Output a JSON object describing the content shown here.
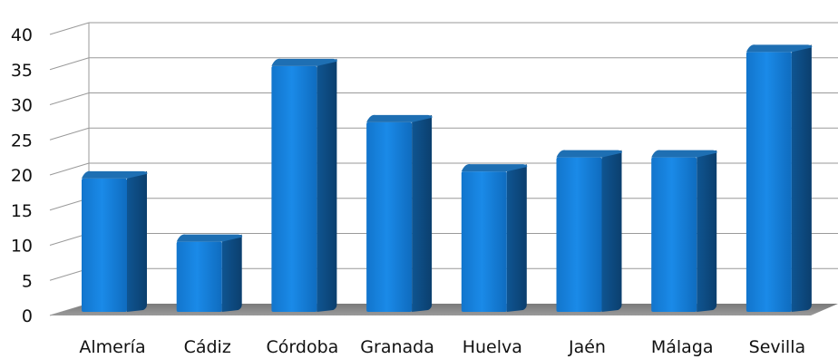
{
  "chart_data": {
    "type": "bar",
    "title": "",
    "xlabel": "",
    "ylabel": "",
    "categories": [
      "Almería",
      "Cádiz",
      "Córdoba",
      "Granada",
      "Huelva",
      "Jaén",
      "Málaga",
      "Sevilla"
    ],
    "values": [
      19.5,
      10.5,
      35.5,
      27.5,
      20.5,
      22.5,
      22.5,
      37.5
    ],
    "ylim": [
      0,
      40
    ],
    "yticks": [
      0,
      5,
      10,
      15,
      20,
      25,
      30,
      35,
      40
    ],
    "grid": true,
    "legend": "none",
    "style": "3d-column",
    "colors": {
      "bar_front": "#1581dc",
      "bar_side": "#0f4f85",
      "bar_top": "#1e6fb3",
      "floor": "#8a8a8a",
      "grid": "#9a9a9a"
    }
  }
}
